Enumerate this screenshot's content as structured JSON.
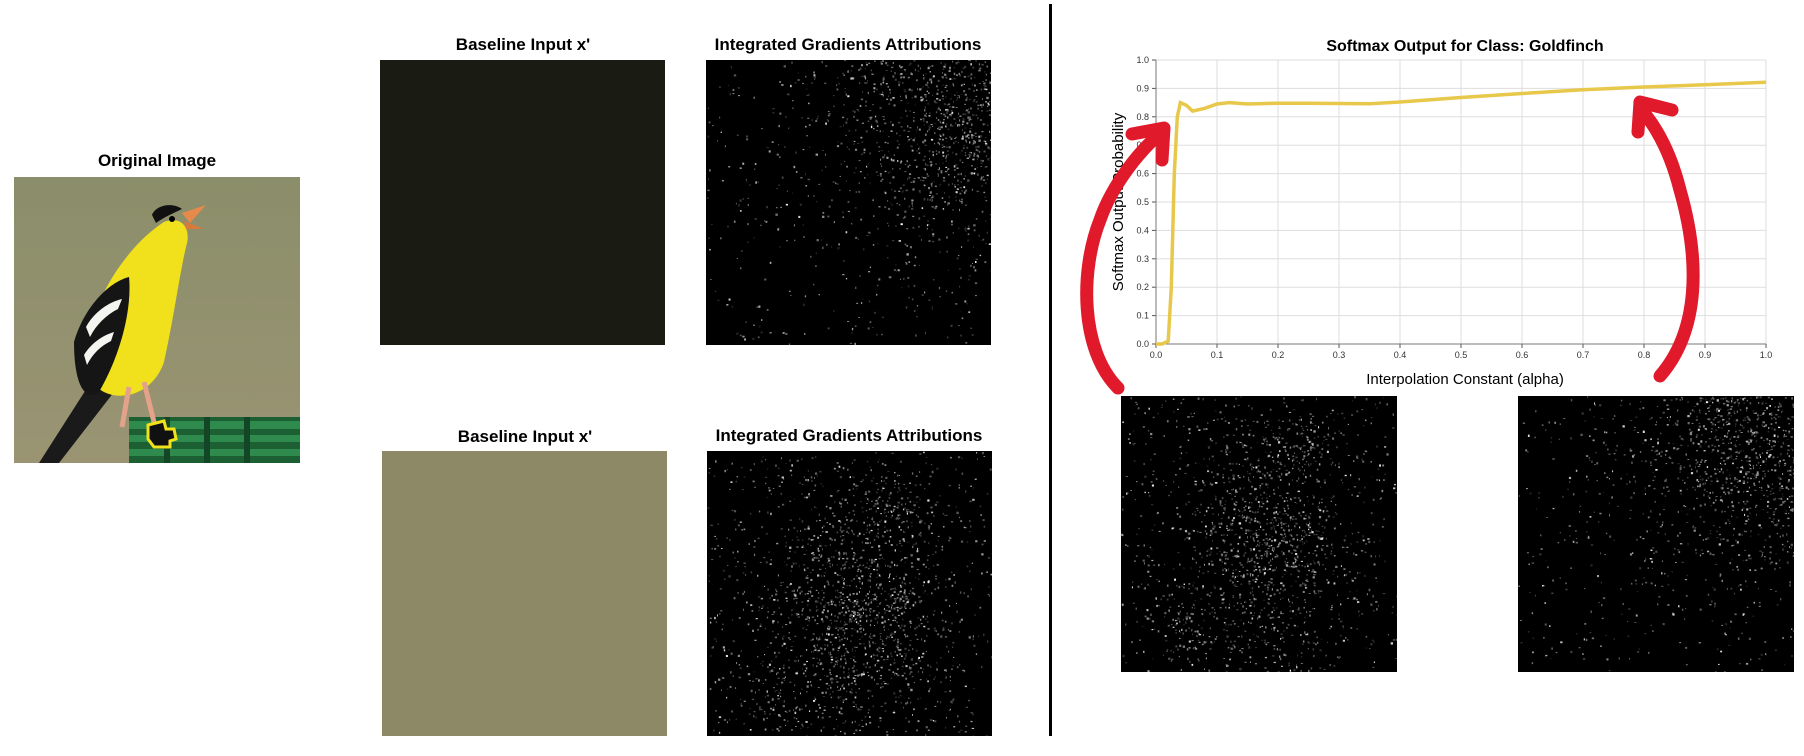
{
  "original": {
    "title": "Original Image"
  },
  "row1": {
    "baseline_title": "Baseline Input x'",
    "ig_title": "Integrated Gradients Attributions",
    "baseline_color": "#1a1c13"
  },
  "row2": {
    "baseline_title": "Baseline Input x'",
    "ig_title": "Integrated Gradients Attributions",
    "baseline_color": "#8d8966"
  },
  "colors": {
    "curve": "#e8c84a",
    "arrow": "#e0192b",
    "grid": "#dddddd",
    "bird_yellow": "#f2e21a",
    "perch_green": "#1e6b3a",
    "background_olive": "#8e8f6c"
  },
  "chart_data": {
    "type": "line",
    "title": "Softmax Output for Class: Goldfinch",
    "xlabel": "Interpolation Constant (alpha)",
    "ylabel": "Softmax Output Probability",
    "xlim": [
      0,
      1
    ],
    "ylim": [
      0,
      1
    ],
    "x_ticks": [
      "0.0",
      "0.1",
      "0.2",
      "0.3",
      "0.4",
      "0.5",
      "0.6",
      "0.7",
      "0.8",
      "0.9",
      "1.0"
    ],
    "y_ticks": [
      "0.0",
      "0.1",
      "0.2",
      "0.3",
      "0.4",
      "0.5",
      "0.6",
      "0.7",
      "0.8",
      "0.9",
      "1.0"
    ],
    "grid": true,
    "series": [
      {
        "x": [
          0.0,
          0.01,
          0.02,
          0.025,
          0.03,
          0.035,
          0.04,
          0.05,
          0.06,
          0.08,
          0.1,
          0.12,
          0.15,
          0.2,
          0.25,
          0.3,
          0.35,
          0.4,
          0.45,
          0.5,
          0.6,
          0.7,
          0.8,
          0.9,
          1.0
        ],
        "y": [
          0.0,
          0.0,
          0.01,
          0.2,
          0.6,
          0.8,
          0.85,
          0.84,
          0.82,
          0.83,
          0.845,
          0.85,
          0.845,
          0.848,
          0.848,
          0.847,
          0.846,
          0.852,
          0.86,
          0.868,
          0.882,
          0.895,
          0.905,
          0.913,
          0.922
        ]
      }
    ]
  }
}
